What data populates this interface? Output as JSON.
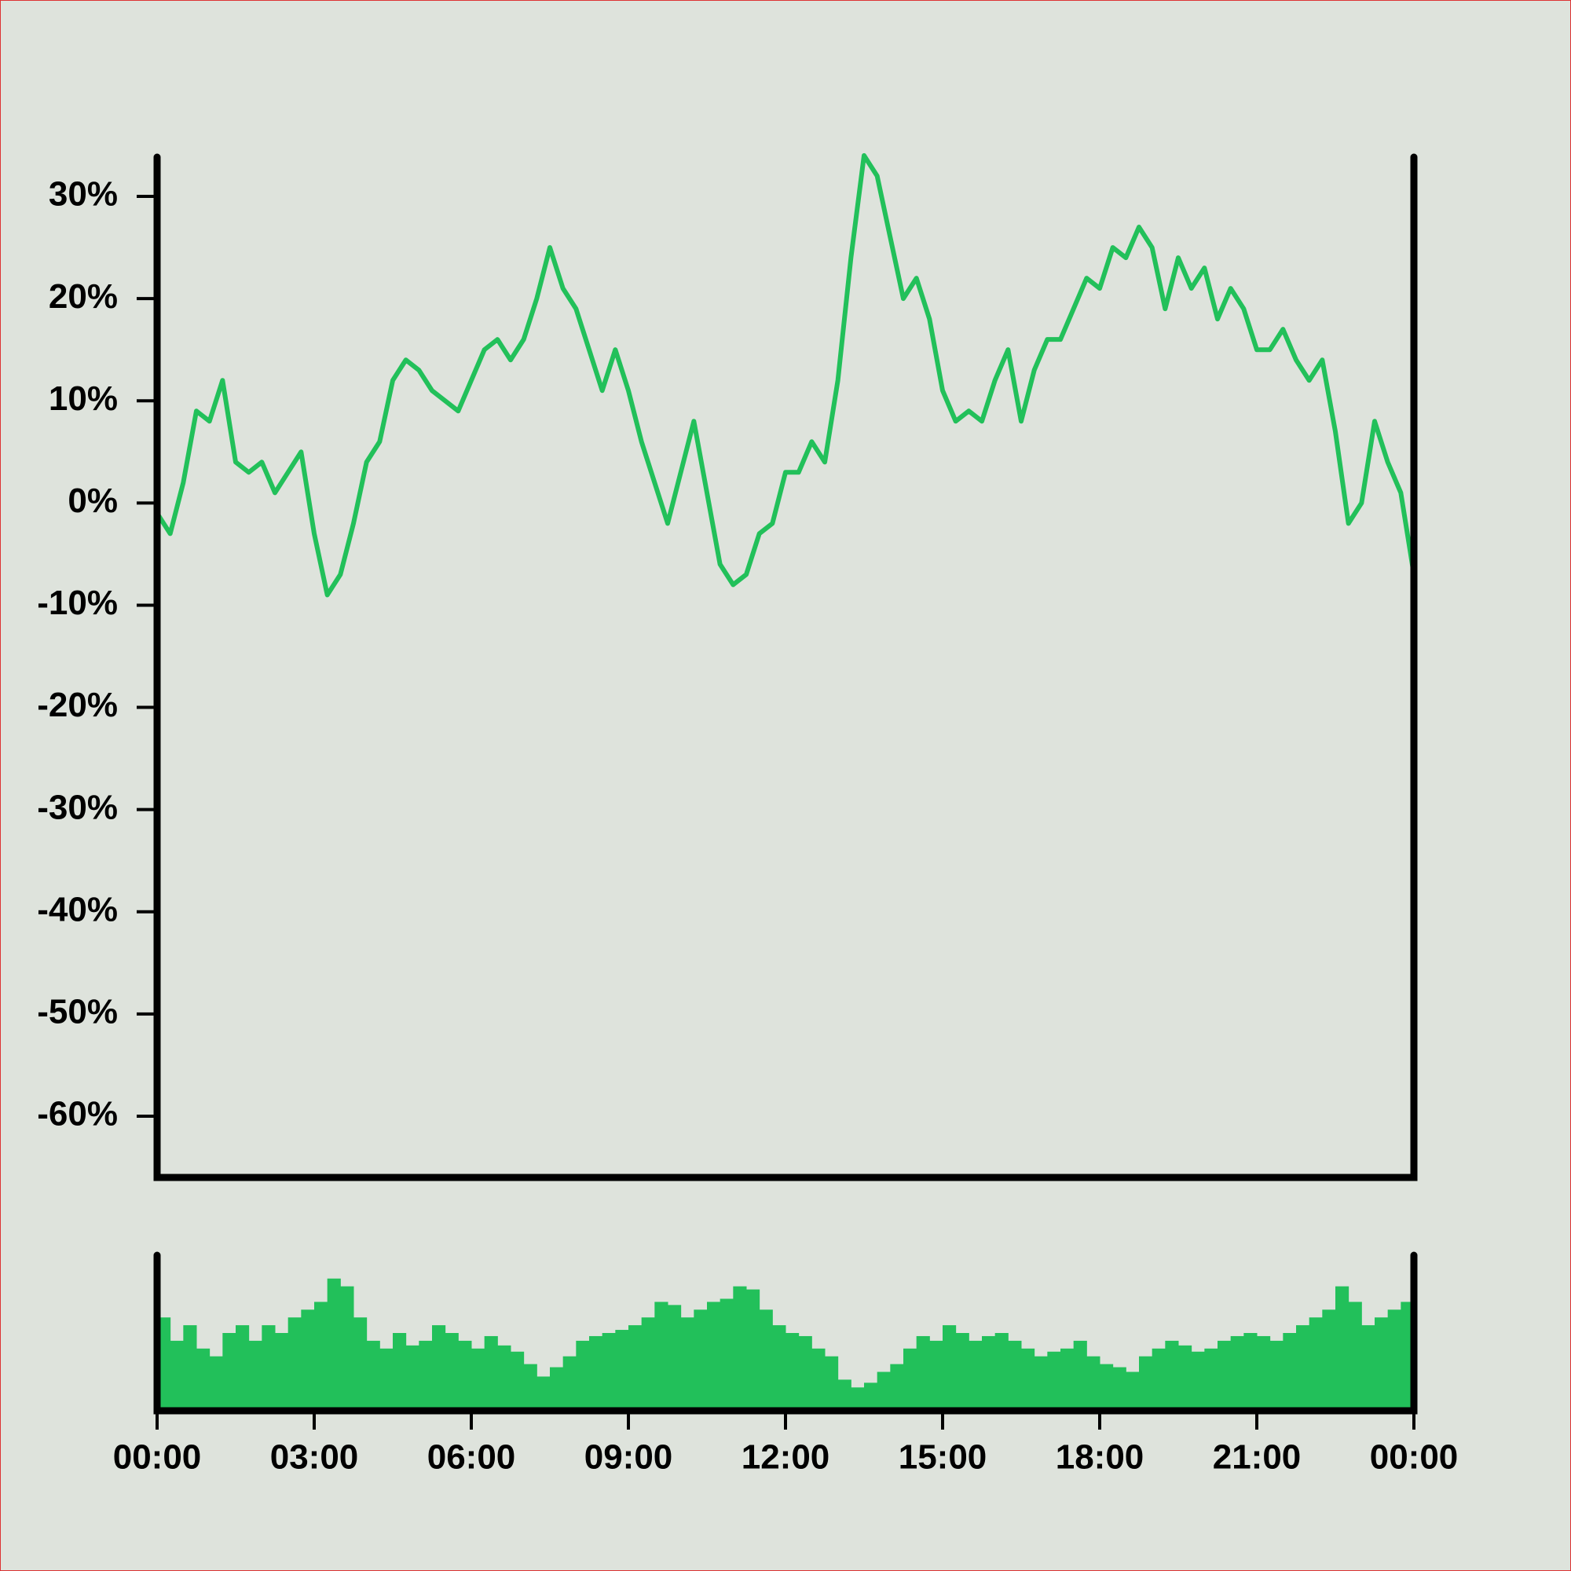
{
  "chart_data": [
    {
      "type": "line",
      "color": "#22c05a",
      "x": [
        0,
        0.25,
        0.5,
        0.75,
        1,
        1.25,
        1.5,
        1.75,
        2,
        2.25,
        2.5,
        2.75,
        3,
        3.25,
        3.5,
        3.75,
        4,
        4.25,
        4.5,
        4.75,
        5,
        5.25,
        5.5,
        5.75,
        6,
        6.25,
        6.5,
        6.75,
        7,
        7.25,
        7.5,
        7.75,
        8,
        8.25,
        8.5,
        8.75,
        9,
        9.25,
        9.5,
        9.75,
        10,
        10.25,
        10.5,
        10.75,
        11,
        11.25,
        11.5,
        11.75,
        12,
        12.25,
        12.5,
        12.75,
        13,
        13.25,
        13.5,
        13.75,
        14,
        14.25,
        14.5,
        14.75,
        15,
        15.25,
        15.5,
        15.75,
        16,
        16.25,
        16.5,
        16.75,
        17,
        17.25,
        17.5,
        17.75,
        18,
        18.25,
        18.5,
        18.75,
        19,
        19.25,
        19.5,
        19.75,
        20,
        20.25,
        20.5,
        20.75,
        21,
        21.25,
        21.5,
        21.75,
        22,
        22.25,
        22.5,
        22.75,
        23,
        23.25,
        23.5,
        23.75,
        24
      ],
      "values": [
        -1,
        -3,
        2,
        9,
        8,
        12,
        4,
        3,
        4,
        1,
        3,
        5,
        -3,
        -9,
        -7,
        -2,
        4,
        6,
        12,
        14,
        13,
        11,
        10,
        9,
        12,
        15,
        16,
        14,
        16,
        20,
        25,
        21,
        19,
        15,
        11,
        15,
        11,
        6,
        2,
        -2,
        3,
        8,
        1,
        -6,
        -8,
        -7,
        -3,
        -2,
        3,
        3,
        6,
        4,
        12,
        24,
        34,
        32,
        26,
        20,
        22,
        18,
        11,
        8,
        9,
        8,
        12,
        15,
        8,
        13,
        16,
        16,
        19,
        22,
        21,
        25,
        24,
        27,
        25,
        19,
        24,
        21,
        23,
        18,
        21,
        19,
        15,
        15,
        17,
        14,
        12,
        14,
        7,
        -2,
        0,
        8,
        4,
        1,
        -7
      ],
      "xlim": [
        0,
        24
      ],
      "ylim": [
        -66,
        34
      ],
      "yticks": [
        {
          "value": 30,
          "label": "30%"
        },
        {
          "value": 20,
          "label": "20%"
        },
        {
          "value": 10,
          "label": "10%"
        },
        {
          "value": 0,
          "label": "0%"
        },
        {
          "value": -10,
          "label": "-10%"
        },
        {
          "value": -20,
          "label": "-20%"
        },
        {
          "value": -30,
          "label": "-30%"
        },
        {
          "value": -40,
          "label": "-40%"
        },
        {
          "value": -50,
          "label": "-50%"
        },
        {
          "value": -60,
          "label": "-60%"
        }
      ]
    },
    {
      "type": "bar",
      "color": "#22c05a",
      "x": [
        0,
        0.25,
        0.5,
        0.75,
        1,
        1.25,
        1.5,
        1.75,
        2,
        2.25,
        2.5,
        2.75,
        3,
        3.25,
        3.5,
        3.75,
        4,
        4.25,
        4.5,
        4.75,
        5,
        5.25,
        5.5,
        5.75,
        6,
        6.25,
        6.5,
        6.75,
        7,
        7.25,
        7.5,
        7.75,
        8,
        8.25,
        8.5,
        8.75,
        9,
        9.25,
        9.5,
        9.75,
        10,
        10.25,
        10.5,
        10.75,
        11,
        11.25,
        11.5,
        11.75,
        12,
        12.25,
        12.5,
        12.75,
        13,
        13.25,
        13.5,
        13.75,
        14,
        14.25,
        14.5,
        14.75,
        15,
        15.25,
        15.5,
        15.75,
        16,
        16.25,
        16.5,
        16.75,
        17,
        17.25,
        17.5,
        17.75,
        18,
        18.25,
        18.5,
        18.75,
        19,
        19.25,
        19.5,
        19.75,
        20,
        20.25,
        20.5,
        20.75,
        21,
        21.25,
        21.5,
        21.75,
        22,
        22.25,
        22.5,
        22.75,
        23,
        23.25,
        23.5,
        23.75
      ],
      "values": [
        60,
        45,
        55,
        40,
        35,
        50,
        55,
        45,
        55,
        50,
        60,
        65,
        70,
        85,
        80,
        60,
        45,
        40,
        50,
        42,
        45,
        55,
        50,
        45,
        40,
        48,
        42,
        38,
        30,
        22,
        28,
        35,
        45,
        48,
        50,
        52,
        55,
        60,
        70,
        68,
        60,
        65,
        70,
        72,
        80,
        78,
        65,
        55,
        50,
        48,
        40,
        35,
        20,
        15,
        18,
        25,
        30,
        40,
        48,
        45,
        55,
        50,
        45,
        48,
        50,
        45,
        40,
        35,
        38,
        40,
        45,
        35,
        30,
        28,
        25,
        35,
        40,
        45,
        42,
        38,
        40,
        45,
        48,
        50,
        48,
        45,
        50,
        55,
        60,
        65,
        80,
        70,
        55,
        60,
        65,
        70
      ],
      "xlim": [
        0,
        24
      ],
      "ylim": [
        0,
        100
      ],
      "xticks": [
        {
          "value": 0,
          "label": "00:00"
        },
        {
          "value": 3,
          "label": "03:00"
        },
        {
          "value": 6,
          "label": "06:00"
        },
        {
          "value": 9,
          "label": "09:00"
        },
        {
          "value": 12,
          "label": "12:00"
        },
        {
          "value": 15,
          "label": "15:00"
        },
        {
          "value": 18,
          "label": "18:00"
        },
        {
          "value": 21,
          "label": "21:00"
        },
        {
          "value": 24,
          "label": "00:00"
        }
      ]
    }
  ]
}
